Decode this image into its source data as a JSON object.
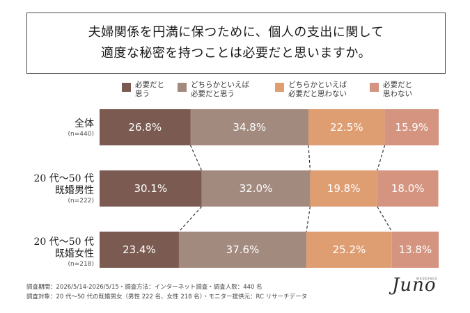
{
  "title": {
    "line1": "夫婦関係を円満に保つために、個人の支出に関して",
    "line2": "適度な秘密を持つことは必要だと思いますか。"
  },
  "legend": [
    {
      "label": "必要だと\n思う",
      "color": "#7b5b51"
    },
    {
      "label": "どちらかといえば\n必要だと思う",
      "color": "#a38a7f"
    },
    {
      "label": "どちらかといえば\n必要だと思わない",
      "color": "#df9e72"
    },
    {
      "label": "必要だと\n思わない",
      "color": "#d49480"
    }
  ],
  "rows": [
    {
      "name": "全体",
      "n": "(n=440)"
    },
    {
      "name": "20 代〜50 代\n既婚男性",
      "n": "(n=222)"
    },
    {
      "name": "20 代〜50 代\n既婚女性",
      "n": "(n=218)"
    }
  ],
  "chart_data": {
    "type": "bar",
    "orientation": "horizontal",
    "stacked": "100%",
    "categories": [
      "全体",
      "20 代〜50 代既婚男性",
      "20 代〜50 代既婚女性"
    ],
    "series": [
      {
        "name": "必要だと思う",
        "values": [
          26.8,
          30.1,
          23.4
        ],
        "labels": [
          "26.8%",
          "30.1%",
          "23.4%"
        ],
        "color": "#7b5b51"
      },
      {
        "name": "どちらかといえば必要だと思う",
        "values": [
          34.8,
          32.0,
          37.6
        ],
        "labels": [
          "34.8%",
          "32.0%",
          "37.6%"
        ],
        "color": "#a38a7f"
      },
      {
        "name": "どちらかといえば必要だと思わない",
        "values": [
          22.5,
          19.8,
          25.2
        ],
        "labels": [
          "22.5%",
          "19.8%",
          "25.2%"
        ],
        "color": "#df9e72"
      },
      {
        "name": "必要だと思わない",
        "values": [
          15.9,
          18.0,
          13.8
        ],
        "labels": [
          "15.9%",
          "18.0%",
          "13.8%"
        ],
        "color": "#d49480"
      }
    ],
    "xlim": [
      0,
      100
    ]
  },
  "footer": {
    "line1": "調査期間：2026/5/14-2026/5/15・調査方法：インターネット調査・調査人数：440 名",
    "line2": "調査対象：20 代〜50 代の既婚男女（男性 222 名、女性 218 名）・モニター提供元：RC リサーチデータ"
  },
  "logo": {
    "main": "Juno",
    "small": "WEDDINGS"
  }
}
